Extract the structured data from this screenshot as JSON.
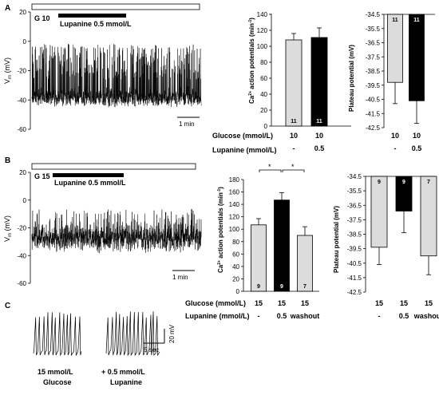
{
  "panels": {
    "A": {
      "letter": "A",
      "trace": {
        "condition_label": "G 10",
        "drug_label": "Lupanine 0.5 mmol/L",
        "ylabel": "V",
        "ylabel_sub": "m",
        "ylabel_unit": "(mV)",
        "y_ticks": [
          "20",
          "0",
          "-20",
          "-40",
          "-60"
        ],
        "scalebar_label": "1 min"
      },
      "ap_chart": {
        "ylabel": "Ca",
        "ylabel_sup": "2+",
        "ylabel_rest": " action potentials (min",
        "ylabel_sup2": "-1",
        "ylabel_end": ")",
        "y_ticks": [
          "0",
          "20",
          "40",
          "60",
          "80",
          "100",
          "120",
          "140"
        ],
        "row1_label": "Glucose   (mmol/L)",
        "row2_label": "Lupanine (mmol/L)"
      },
      "plateau_chart": {
        "ylabel": "Plateau potential (mV)",
        "y_ticks": [
          "-34.5",
          "-35.5",
          "-36.5",
          "-37.5",
          "-38.5",
          "-39.5",
          "-40.5",
          "-41.5",
          "-42.5"
        ]
      }
    },
    "B": {
      "letter": "B",
      "trace": {
        "condition_label": "G 15",
        "drug_label": "Lupanine 0.5 mmol/L",
        "ylabel": "V",
        "ylabel_sub": "m",
        "ylabel_unit": "(mV)",
        "y_ticks": [
          "20",
          "0",
          "-20",
          "-40",
          "-60"
        ],
        "scalebar_label": "1 min"
      },
      "ap_chart": {
        "ylabel": "Ca",
        "ylabel_sup": "2+",
        "ylabel_rest": " action potentials (min",
        "ylabel_sup2": "-1",
        "ylabel_end": ")",
        "y_ticks": [
          "0",
          "20",
          "40",
          "60",
          "80",
          "100",
          "120",
          "140",
          "160",
          "180"
        ],
        "significance": [
          "*",
          "*"
        ],
        "row1_label": "Glucose   (mmol/L)",
        "row2_label": "Lupanine (mmol/L)"
      },
      "plateau_chart": {
        "ylabel": "Plateau potential (mV)",
        "y_ticks": [
          "-34.5",
          "-35.5",
          "-36.5",
          "-37.5",
          "-38.5",
          "-39.5",
          "-40.5",
          "-41.5",
          "-42.5"
        ]
      }
    },
    "C": {
      "letter": "C",
      "left_caption_line1": "15 mmol/L",
      "left_caption_line2": "Glucose",
      "right_caption_line1": "+ 0.5 mmol/L",
      "right_caption_line2": "Lupanine",
      "scale_v": "20 mV",
      "scale_t": "5 sec"
    }
  },
  "colors": {
    "control_bar": "#dcdcdc",
    "lupanine_bar": "#000000"
  },
  "chart_data": [
    {
      "type": "bar",
      "panel": "A",
      "categories": [
        "10 / -",
        "10 / 0.5"
      ],
      "glucose": [
        "10",
        "10"
      ],
      "lupanine": [
        "-",
        "0.5"
      ],
      "values": [
        108,
        111
      ],
      "errors": [
        8,
        12
      ],
      "n": [
        "11",
        "11"
      ],
      "ylim": [
        0,
        140
      ]
    },
    {
      "type": "bar",
      "panel": "A",
      "categories": [
        "10 / -",
        "10 / 0.5"
      ],
      "glucose": [
        "10",
        "10"
      ],
      "lupanine": [
        "-",
        "0.5"
      ],
      "values": [
        -39.3,
        -40.6
      ],
      "errors": [
        1.5,
        1.6
      ],
      "n": [
        "11",
        "11"
      ],
      "ylim": [
        -42.5,
        -34.5
      ]
    },
    {
      "type": "bar",
      "panel": "B",
      "categories": [
        "15 / -",
        "15 / 0.5",
        "15 / washout"
      ],
      "glucose": [
        "15",
        "15",
        "15"
      ],
      "lupanine": [
        "-",
        "0.5",
        "washout"
      ],
      "values": [
        107,
        147,
        90
      ],
      "errors": [
        10,
        12,
        14
      ],
      "n": [
        "9",
        "9",
        "7"
      ],
      "ylim": [
        0,
        180
      ]
    },
    {
      "type": "bar",
      "panel": "B",
      "categories": [
        "15 / -",
        "15 / 0.5",
        "15 / washout"
      ],
      "glucose": [
        "15",
        "15",
        "15"
      ],
      "lupanine": [
        "-",
        "0.5",
        "washout"
      ],
      "values": [
        -39.4,
        -36.9,
        -40.0
      ],
      "errors": [
        1.2,
        1.5,
        1.3
      ],
      "n": [
        "9",
        "9",
        "7"
      ],
      "ylim": [
        -42.5,
        -34.5
      ]
    }
  ]
}
